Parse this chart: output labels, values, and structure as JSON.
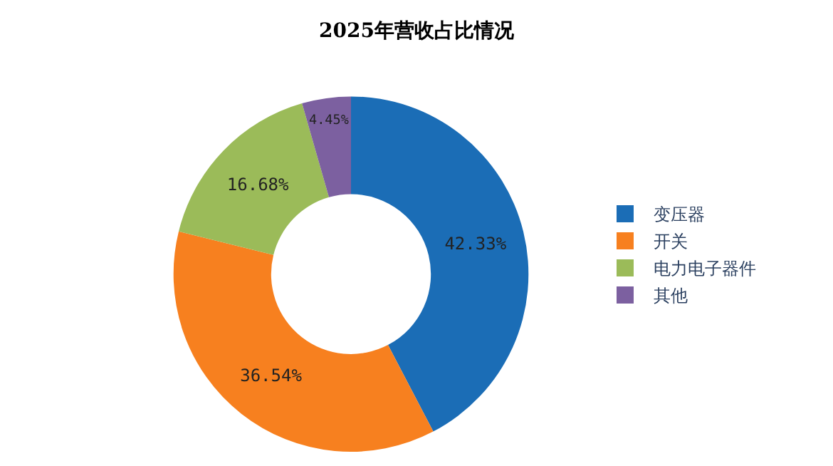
{
  "chart_data": {
    "type": "donut",
    "title": "2025年营收占比情况",
    "categories": [
      "变压器",
      "开关",
      "电力电子器件",
      "其他"
    ],
    "values": [
      42.33,
      36.54,
      16.68,
      4.45
    ],
    "value_labels": [
      "42.33%",
      "36.54%",
      "16.68%",
      "4.45%"
    ],
    "colors": [
      "#1b6db6",
      "#f7801f",
      "#9bbb59",
      "#7c60a0"
    ],
    "legend": "right"
  }
}
